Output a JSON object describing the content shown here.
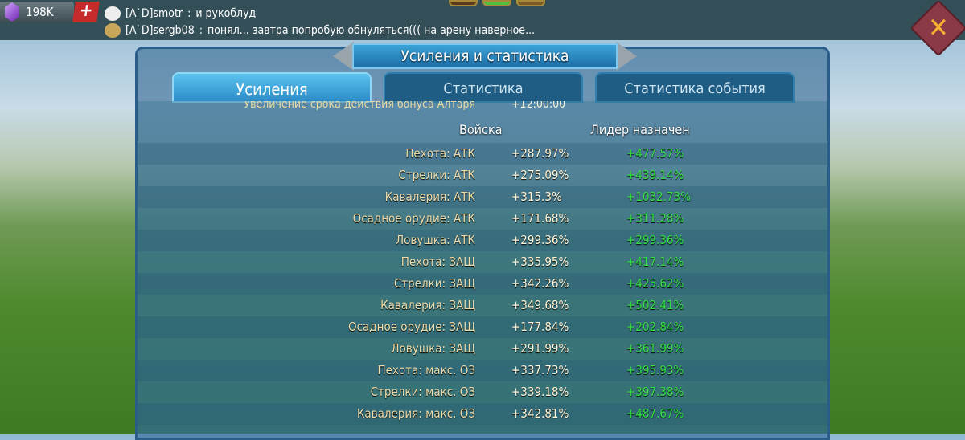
{
  "topbar": {
    "gems": "198K",
    "add_icon": "plus-icon",
    "chat": [
      {
        "name": "[A`D]smotr",
        "sep": " : ",
        "text": "и рукоблуд"
      },
      {
        "name": "[A`D]sergb08",
        "sep": " : ",
        "text": "понял... завтра попробую обнуляться((( на арену наверное..."
      }
    ]
  },
  "window": {
    "title": "Усиления и статистика",
    "close_icon": "close-icon"
  },
  "tabs": [
    {
      "label": "Усиления",
      "active": true
    },
    {
      "label": "Статистика"
    },
    {
      "label": "Статистика события"
    }
  ],
  "partial_row": {
    "label": "Увеличение срока действия бонуса Алтаря",
    "value": "+12:00:00"
  },
  "columns": {
    "troops": "Войска",
    "leader": "Лидер назначен"
  },
  "rows": [
    {
      "label": "Пехота: АТК",
      "troops": "+287.97%",
      "leader": "+477.57%"
    },
    {
      "label": "Стрелки: АТК",
      "troops": "+275.09%",
      "leader": "+439.14%"
    },
    {
      "label": "Кавалерия: АТК",
      "troops": "+315.3%",
      "leader": "+1032.73%"
    },
    {
      "label": "Осадное орудие: АТК",
      "troops": "+171.68%",
      "leader": "+311.28%"
    },
    {
      "label": "Ловушка: АТК",
      "troops": "+299.36%",
      "leader": "+299.36%"
    },
    {
      "label": "Пехота: ЗАЩ",
      "troops": "+335.95%",
      "leader": "+417.14%"
    },
    {
      "label": "Стрелки: ЗАЩ",
      "troops": "+342.26%",
      "leader": "+425.62%"
    },
    {
      "label": "Кавалерия: ЗАЩ",
      "troops": "+349.68%",
      "leader": "+502.41%"
    },
    {
      "label": "Осадное орудие: ЗАЩ",
      "troops": "+177.84%",
      "leader": "+202.84%"
    },
    {
      "label": "Ловушка: ЗАЩ",
      "troops": "+291.99%",
      "leader": "+361.99%"
    },
    {
      "label": "Пехота: макс. ОЗ",
      "troops": "+337.73%",
      "leader": "+395.93%"
    },
    {
      "label": "Стрелки: макс. ОЗ",
      "troops": "+339.18%",
      "leader": "+397.38%"
    },
    {
      "label": "Кавалерия: макс. ОЗ",
      "troops": "+342.81%",
      "leader": "+487.67%"
    }
  ]
}
